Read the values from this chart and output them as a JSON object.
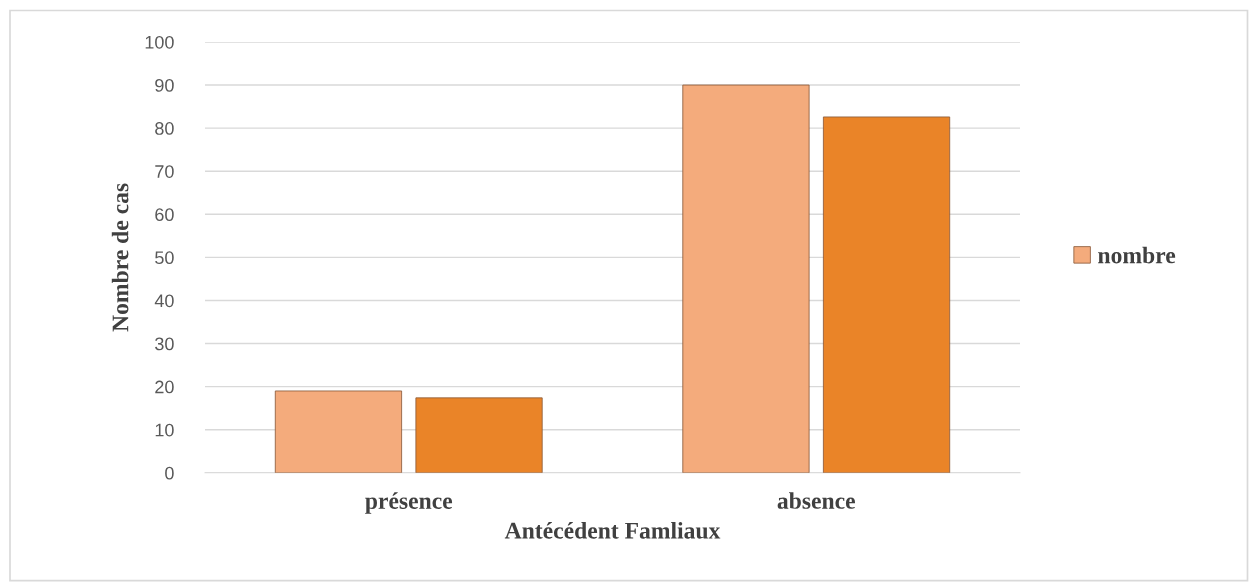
{
  "chart_data": {
    "type": "bar",
    "xlabel": "Antécédent Famliaux",
    "ylabel": "Nombre de cas",
    "categories": [
      "présence",
      "absence"
    ],
    "series": [
      {
        "name": "nombre",
        "color": "#f4ab7c",
        "values": [
          19,
          90
        ]
      },
      {
        "color": "#ea8428",
        "values": [
          17.4,
          82.6
        ]
      }
    ],
    "ylim": [
      0,
      100
    ],
    "yticks": [
      0,
      10,
      20,
      30,
      40,
      50,
      60,
      70,
      80,
      90,
      100
    ],
    "grid": "y",
    "legend": "right"
  }
}
